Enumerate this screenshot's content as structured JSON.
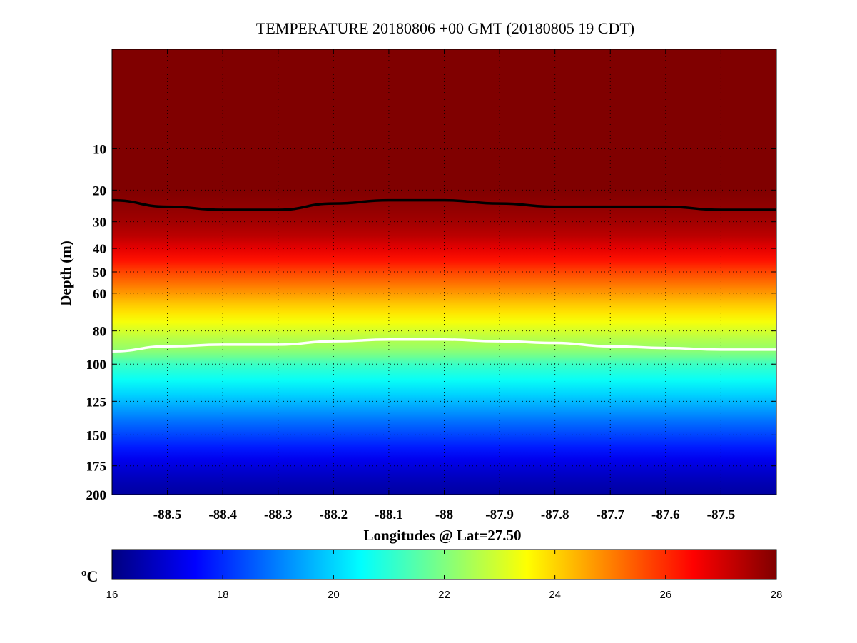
{
  "chart_data": {
    "type": "heatmap",
    "title": "TEMPERATURE 20180806 +00 GMT (20180805 19 CDT)",
    "xlabel": "Longitudes @ Lat=27.50",
    "ylabel": "Depth (m)",
    "xlim": [
      -88.6,
      -87.4
    ],
    "ylim": [
      200,
      0
    ],
    "y_scale": "sqrt",
    "xticks": [
      -88.5,
      -88.4,
      -88.3,
      -88.2,
      -88.1,
      -88,
      -87.9,
      -87.8,
      -87.7,
      -87.6,
      -87.5
    ],
    "xtick_labels": [
      "-88.5",
      "-88.4",
      "-88.3",
      "-88.2",
      "-88.1",
      "-88",
      "-87.9",
      "-87.8",
      "-87.7",
      "-87.6",
      "-87.5"
    ],
    "yticks": [
      10,
      20,
      30,
      40,
      50,
      60,
      80,
      100,
      125,
      150,
      175,
      200
    ],
    "ytick_labels": [
      "10",
      "20",
      "30",
      "40",
      "50",
      "60",
      "80",
      "100",
      "125",
      "150",
      "175",
      "200"
    ],
    "grid": true,
    "colormap": "jet",
    "colorbar": {
      "unit": "oC",
      "range": [
        16,
        28
      ],
      "ticks": [
        16,
        18,
        20,
        22,
        24,
        26,
        28
      ],
      "tick_labels": [
        "16",
        "18",
        "20",
        "22",
        "24",
        "26",
        "28"
      ],
      "placement": "bottom"
    },
    "temperature_profile": {
      "depth": [
        0,
        20,
        25,
        30,
        35,
        40,
        45,
        50,
        55,
        60,
        65,
        70,
        75,
        80,
        85,
        90,
        95,
        100,
        110,
        120,
        130,
        140,
        150,
        160,
        170,
        180,
        190,
        200
      ],
      "temperature": [
        28.0,
        28.0,
        27.8,
        27.6,
        27.3,
        26.8,
        26.3,
        25.7,
        25.2,
        24.7,
        24.2,
        23.8,
        23.4,
        23.0,
        22.6,
        22.3,
        21.8,
        21.2,
        20.6,
        20.0,
        19.4,
        18.8,
        18.3,
        17.8,
        17.3,
        16.9,
        16.6,
        16.4
      ]
    },
    "contours": [
      {
        "color": "#000000",
        "x": [
          -88.6,
          -88.5,
          -88.4,
          -88.3,
          -88.2,
          -88.1,
          -88.0,
          -87.9,
          -87.8,
          -87.7,
          -87.6,
          -87.5,
          -87.4
        ],
        "depth": [
          23,
          25,
          26,
          26,
          24,
          23,
          23,
          24,
          25,
          25,
          25,
          26,
          26
        ]
      },
      {
        "color": "#ffffff",
        "x": [
          -88.6,
          -88.5,
          -88.4,
          -88.3,
          -88.2,
          -88.1,
          -88.0,
          -87.9,
          -87.8,
          -87.7,
          -87.6,
          -87.5,
          -87.4
        ],
        "depth": [
          92,
          89,
          88,
          88,
          86,
          85,
          85,
          86,
          87,
          89,
          90,
          91,
          91
        ]
      }
    ]
  }
}
